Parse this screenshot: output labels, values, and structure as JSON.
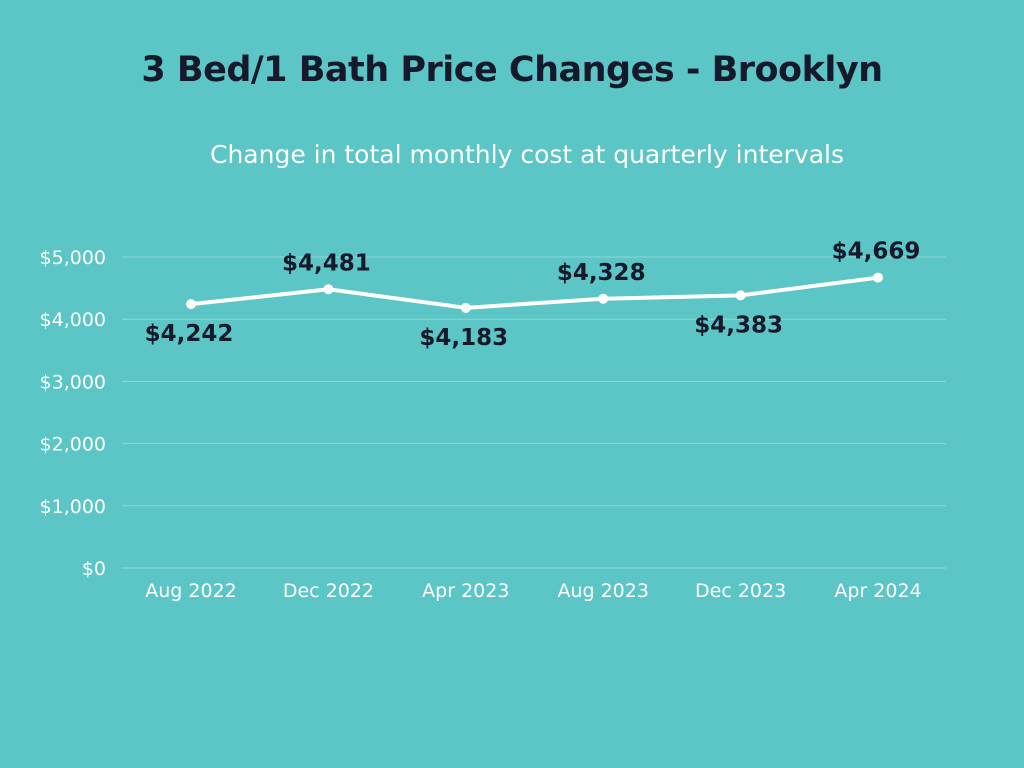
{
  "chart_data": {
    "type": "line",
    "title": "3 Bed/1 Bath Price Changes - Brooklyn",
    "subtitle": "Change in total monthly cost at quarterly intervals",
    "xlabel": "",
    "ylabel": "",
    "categories": [
      "Aug 2022",
      "Dec 2022",
      "Apr 2023",
      "Aug 2023",
      "Dec 2023",
      "Apr 2024"
    ],
    "series": [
      {
        "name": "Total monthly cost",
        "values": [
          4242,
          4481,
          4183,
          4328,
          4383,
          4669
        ],
        "labels": [
          "$4,242",
          "$4,481",
          "$4,183",
          "$4,328",
          "$4,383",
          "$4,669"
        ],
        "label_side": [
          "below",
          "above",
          "below",
          "above",
          "below",
          "above"
        ]
      }
    ],
    "ylim": [
      0,
      5000
    ],
    "yticks": [
      0,
      1000,
      2000,
      3000,
      4000,
      5000
    ],
    "ytick_labels": [
      "$0",
      "$1,000",
      "$2,000",
      "$3,000",
      "$4,000",
      "$5,000"
    ],
    "grid": true,
    "legend": "none",
    "colors": {
      "background": "#5cc5c6",
      "line": "#ffffff",
      "grid": "#8fd8d8",
      "title": "#16192c",
      "label": "#16192c"
    }
  }
}
